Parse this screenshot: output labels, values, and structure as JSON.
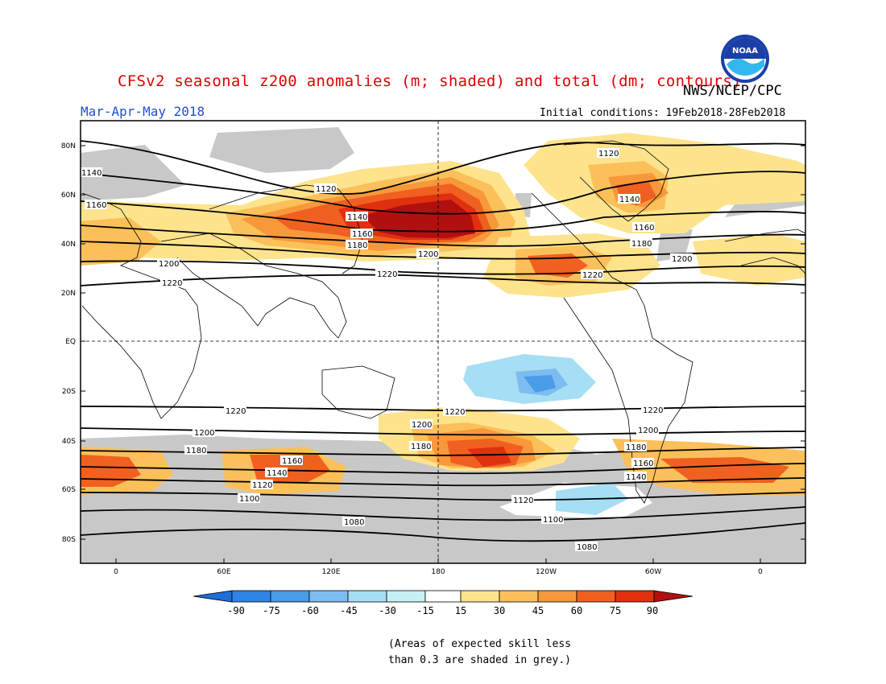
{
  "header": {
    "title": "CFSv2 seasonal z200 anomalies (m; shaded) and total (dm; contours)",
    "agency": "NWS/NCEP/CPC",
    "logo_text": "NOAA",
    "period": "Mar-Apr-May 2018",
    "initial_conditions": "Initial conditions: 19Feb2018-28Feb2018"
  },
  "map": {
    "lat_labels": [
      "80N",
      "60N",
      "40N",
      "20N",
      "EQ",
      "20S",
      "40S",
      "60S",
      "80S"
    ],
    "lon_labels": [
      "0",
      "60E",
      "120E",
      "180",
      "120W",
      "60W",
      "0"
    ],
    "contour_labels": [
      "1080",
      "1100",
      "1120",
      "1140",
      "1160",
      "1180",
      "1200",
      "1220"
    ],
    "grey_meaning": "Areas of expected skill less than 0.3"
  },
  "legend": {
    "ticks": [
      "-90",
      "-75",
      "-60",
      "-45",
      "-30",
      "-15",
      "15",
      "30",
      "45",
      "60",
      "75",
      "90"
    ],
    "colors": [
      "#1e6fd8",
      "#2f84e6",
      "#4a9be8",
      "#7dbcf0",
      "#a6def4",
      "#c6f0f6",
      "#ffffff",
      "#fde38c",
      "#fbc05a",
      "#f7983a",
      "#f06020",
      "#e03010",
      "#b01010"
    ]
  },
  "colors": {
    "skill_grey": "#c8c8c8",
    "title_red": "#e00000",
    "period_blue": "#1f4fd0"
  },
  "notes": {
    "line1": "(Areas of expected skill less",
    "line2": "than 0.3 are shaded in grey.)"
  }
}
